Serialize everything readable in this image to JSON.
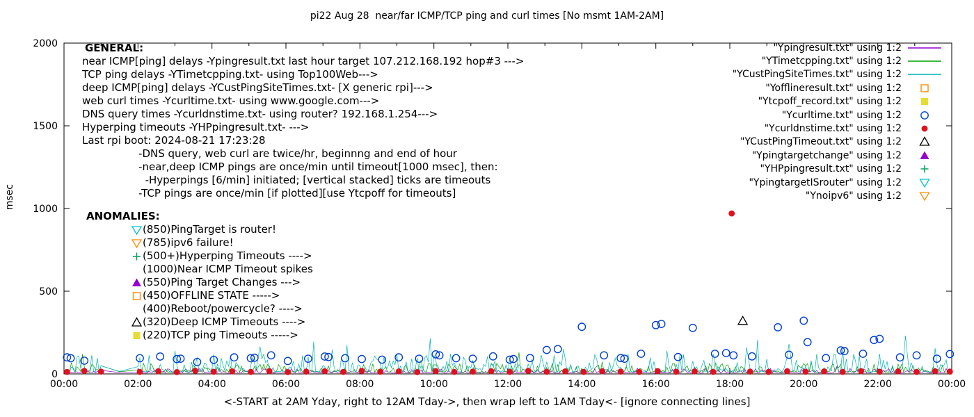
{
  "chart_data": {
    "type": "line",
    "title": "pi22 Aug 28  near/far ICMP/TCP ping and curl times [No msmt 1AM-2AM]",
    "xlabel": "<-START at 2AM Yday, right to 12AM Tday->, then wrap left to 1AM Tday<- [ignore connecting lines]",
    "ylabel": "msec",
    "xlim": [
      0,
      24
    ],
    "ylim": [
      0,
      2000
    ],
    "yticks": [
      0,
      500,
      1000,
      1500,
      2000
    ],
    "xtick_labels": [
      "00:00",
      "02:00",
      "04:00",
      "06:00",
      "08:00",
      "10:00",
      "12:00",
      "14:00",
      "16:00",
      "18:00",
      "20:00",
      "22:00",
      "00:00"
    ],
    "no_measurement_gap_hours": [
      1,
      2
    ],
    "legend": [
      {
        "label": "\"Ypingresult.txt\" using 1:2",
        "marker": "line",
        "color": "#9400d3"
      },
      {
        "label": "\"YTimetcpping.txt\" using 1:2",
        "marker": "line",
        "color": "#00a000"
      },
      {
        "label": "\"YCustPingSiteTimes.txt\" using 1:2",
        "marker": "line",
        "color": "#00b3b3"
      },
      {
        "label": "\"Yofflineresult.txt\" using 1:2",
        "marker": "square-open",
        "color": "#ff8c00"
      },
      {
        "label": "\"Ytcpoff_record.txt\" using 1:2",
        "marker": "square-filled",
        "color": "#e6dc32"
      },
      {
        "label": "\"Ycurltime.txt\" using 1:2",
        "marker": "circle-open",
        "color": "#0040cc"
      },
      {
        "label": "\"Ycurldnstime.txt\" using 1:2",
        "marker": "circle-filled",
        "color": "#e01020"
      },
      {
        "label": "\"YCustPingTimeout.txt\" using 1:2",
        "marker": "triangle-open",
        "color": "#000000"
      },
      {
        "label": "\"Ypingtargetchange\" using 1:2",
        "marker": "triangle-filled",
        "color": "#9400d3"
      },
      {
        "label": "\"YHPpingresult.txt\" using 1:2",
        "marker": "plus",
        "color": "#00a060"
      },
      {
        "label": "\"YpingtargetISrouter\" using 1:2",
        "marker": "triangle-down-open",
        "color": "#00c3cc"
      },
      {
        "label": "\"Ynoipv6\" using 1:2",
        "marker": "triangle-down-open",
        "color": "#ff8c00"
      }
    ],
    "series": {
      "near_icmp": {
        "name": "Ypingresult.txt",
        "style": "noise-line",
        "color": "#9400d3",
        "base": 5,
        "amp": 28,
        "seed": 11,
        "points_per_hour": 20,
        "spikes": []
      },
      "tcp_ping": {
        "name": "YTimetcpping.txt",
        "style": "noise-line",
        "color": "#00a000",
        "base": 10,
        "amp": 55,
        "seed": 23,
        "points_per_hour": 20,
        "spikes": [
          [
            0.5,
            120
          ],
          [
            12.3,
            130
          ]
        ]
      },
      "deep_icmp": {
        "name": "YCustPingSiteTimes.txt",
        "style": "noise-line",
        "color": "#00b3b3",
        "base": 12,
        "amp": 110,
        "seed": 37,
        "points_per_hour": 20,
        "spikes": [
          [
            3.0,
            140
          ],
          [
            5.3,
            165
          ],
          [
            6.75,
            195
          ],
          [
            7.65,
            175
          ],
          [
            9.9,
            215
          ],
          [
            13.5,
            150
          ],
          [
            16.3,
            140
          ],
          [
            18.75,
            205
          ],
          [
            21.05,
            150
          ],
          [
            22.75,
            230
          ],
          [
            23.55,
            155
          ]
        ]
      },
      "curl": {
        "name": "Ycurltime.txt",
        "style": "scatter",
        "marker": "circle-open",
        "color": "#0040cc",
        "points": [
          [
            0.08,
            100
          ],
          [
            0.18,
            95
          ],
          [
            0.55,
            80
          ],
          [
            2.05,
            95
          ],
          [
            2.6,
            105
          ],
          [
            3.05,
            90
          ],
          [
            3.15,
            92
          ],
          [
            3.6,
            72
          ],
          [
            4.05,
            85
          ],
          [
            4.6,
            100
          ],
          [
            5.05,
            95
          ],
          [
            5.15,
            98
          ],
          [
            5.6,
            112
          ],
          [
            6.05,
            78
          ],
          [
            6.6,
            92
          ],
          [
            7.05,
            105
          ],
          [
            7.15,
            102
          ],
          [
            7.6,
            95
          ],
          [
            8.05,
            90
          ],
          [
            8.6,
            86
          ],
          [
            9.05,
            100
          ],
          [
            9.6,
            92
          ],
          [
            10.05,
            118
          ],
          [
            10.15,
            112
          ],
          [
            10.6,
            95
          ],
          [
            11.05,
            92
          ],
          [
            11.6,
            106
          ],
          [
            12.05,
            86
          ],
          [
            12.15,
            90
          ],
          [
            12.6,
            96
          ],
          [
            13.05,
            145
          ],
          [
            13.35,
            150
          ],
          [
            14.0,
            285
          ],
          [
            14.6,
            112
          ],
          [
            15.05,
            96
          ],
          [
            15.15,
            92
          ],
          [
            15.6,
            122
          ],
          [
            16.0,
            295
          ],
          [
            16.15,
            302
          ],
          [
            16.6,
            102
          ],
          [
            17.0,
            278
          ],
          [
            17.6,
            122
          ],
          [
            17.9,
            126
          ],
          [
            18.1,
            112
          ],
          [
            18.6,
            106
          ],
          [
            19.3,
            282
          ],
          [
            19.6,
            116
          ],
          [
            20.0,
            322
          ],
          [
            20.1,
            192
          ],
          [
            20.6,
            96
          ],
          [
            21.0,
            142
          ],
          [
            21.1,
            138
          ],
          [
            21.6,
            122
          ],
          [
            21.9,
            205
          ],
          [
            22.05,
            212
          ],
          [
            22.6,
            100
          ],
          [
            23.05,
            112
          ],
          [
            23.6,
            92
          ],
          [
            23.95,
            120
          ]
        ]
      },
      "dns": {
        "name": "Ycurldnstime.txt",
        "style": "scatter",
        "marker": "circle-filled",
        "color": "#e01020",
        "points": [
          [
            0.08,
            12
          ],
          [
            0.55,
            18
          ],
          [
            1.0,
            14
          ],
          [
            2.05,
            12
          ],
          [
            2.55,
            16
          ],
          [
            3.05,
            11
          ],
          [
            3.55,
            19
          ],
          [
            4.05,
            13
          ],
          [
            4.55,
            15
          ],
          [
            5.05,
            12
          ],
          [
            5.55,
            17
          ],
          [
            6.05,
            11
          ],
          [
            6.55,
            14
          ],
          [
            7.05,
            16
          ],
          [
            7.55,
            12
          ],
          [
            8.05,
            18
          ],
          [
            8.55,
            13
          ],
          [
            9.05,
            15
          ],
          [
            9.55,
            11
          ],
          [
            10.05,
            17
          ],
          [
            10.55,
            12
          ],
          [
            11.05,
            14
          ],
          [
            11.55,
            16
          ],
          [
            12.05,
            12
          ],
          [
            12.55,
            18
          ],
          [
            13.05,
            13
          ],
          [
            13.55,
            15
          ],
          [
            14.05,
            12
          ],
          [
            14.55,
            16
          ],
          [
            15.05,
            14
          ],
          [
            15.55,
            12
          ],
          [
            16.05,
            17
          ],
          [
            16.55,
            13
          ],
          [
            17.05,
            15
          ],
          [
            17.55,
            12
          ],
          [
            18.05,
            970
          ],
          [
            18.55,
            14
          ],
          [
            19.05,
            12
          ],
          [
            19.55,
            16
          ],
          [
            20.05,
            13
          ],
          [
            20.55,
            15
          ],
          [
            21.05,
            12
          ],
          [
            21.55,
            17
          ],
          [
            22.05,
            13
          ],
          [
            22.55,
            15
          ],
          [
            23.05,
            12
          ],
          [
            23.55,
            16
          ],
          [
            23.95,
            14
          ]
        ]
      },
      "deep_timeout": {
        "name": "YCustPingTimeout.txt",
        "style": "scatter",
        "marker": "triangle-open",
        "color": "#000000",
        "points": [
          [
            18.35,
            320
          ]
        ]
      }
    },
    "annotations": {
      "general_heading": "GENERAL:",
      "general": [
        "near ICMP[ping] delays -Ypingresult.txt last hour target 107.212.168.192 hop#3 --->",
        "TCP ping delays -YTimetcpping.txt- using Top100Web--->",
        "deep ICMP[ping] delays -YCustPingSiteTimes.txt- [X generic rpi]--->",
        "web curl times -Ycurltime.txt- using www.google.com--->",
        "DNS query times -Ycurldnstime.txt- using router? 192.168.1.254--->",
        "Hyperping timeouts -YHPpingresult.txt- --->",
        "Last rpi boot: 2024-08-21 17:23:28",
        "                 -DNS query, web curl are twice/hr, beginnng and end of hour",
        "                 -near,deep ICMP pings are once/min until timeout[1000 msec], then:",
        "                   -Hyperpings [6/min] initiated; [vertical stacked] ticks are timeouts",
        "                 -TCP pings are once/min [if plotted][use Ytcpoff for timeouts]"
      ],
      "anomalies_heading": "ANOMALIES:",
      "anomalies": [
        {
          "icon": "triangle-down-open",
          "color": "#00c3cc",
          "text": "(850)PingTarget is router!"
        },
        {
          "icon": "triangle-down-open",
          "color": "#ff8c00",
          "text": "(785)ipv6 failure!"
        },
        {
          "icon": "plus",
          "color": "#00a060",
          "text": "(500+)Hyperping Timeouts ---->"
        },
        {
          "icon": "none",
          "color": "",
          "text": "(1000)Near ICMP Timeout spikes"
        },
        {
          "icon": "triangle-filled",
          "color": "#9400d3",
          "text": "(550)Ping Target Changes --->"
        },
        {
          "icon": "square-open",
          "color": "#ff8c00",
          "text": "(450)OFFLINE STATE ----->"
        },
        {
          "icon": "none",
          "color": "",
          "text": "(400)Reboot/powercycle? ---->"
        },
        {
          "icon": "triangle-open",
          "color": "#000000",
          "text": "(320)Deep ICMP Timeouts ---->"
        },
        {
          "icon": "square-filled",
          "color": "#e6dc32",
          "text": "(220)TCP ping Timeouts ----->"
        }
      ]
    }
  }
}
